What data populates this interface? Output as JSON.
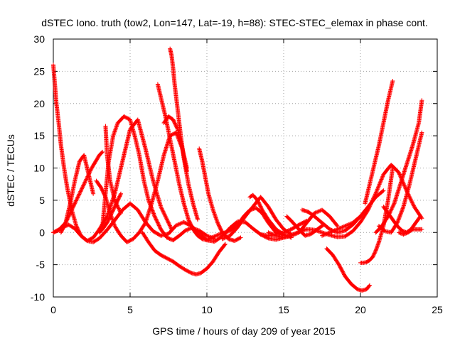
{
  "chart_data": {
    "type": "scatter",
    "title": "dSTEC Iono. truth (tow2, Lon=147, Lat=-19, h=88): STEC-STEC_elemax in phase cont.",
    "xlabel": "GPS time / hours of day 209 of year 2015",
    "ylabel": "dSTEC  / TECUs",
    "xlim": [
      0,
      25
    ],
    "ylim": [
      -10,
      30
    ],
    "xticks": [
      "0",
      "5",
      "10",
      "15",
      "20",
      "25"
    ],
    "yticks": [
      "-10",
      "-5",
      "0",
      "5",
      "10",
      "15",
      "20",
      "25",
      "30"
    ],
    "grid": true,
    "marker": "+",
    "color": "#ff0000",
    "series": [
      {
        "x": [
          0.0,
          0.3,
          0.6,
          1.0,
          1.4,
          1.8,
          2.2,
          2.6,
          3.0,
          3.5,
          4.0,
          4.5,
          5.0,
          5.5,
          6.0,
          6.5,
          7.0,
          7.5,
          8.0,
          8.5,
          9.0,
          9.5,
          10.0,
          10.5,
          11.0,
          11.5,
          12.0,
          12.5,
          13.0,
          13.5,
          14.0,
          14.5,
          15.0,
          15.5,
          16.0,
          16.5,
          17.0,
          17.5,
          18.0,
          18.5,
          19.0,
          19.5,
          20.0,
          20.5,
          21.0,
          21.5,
          22.0,
          22.5,
          23.0,
          23.5,
          24.0
        ],
        "y": [
          0.0,
          0.3,
          0.8,
          1.2,
          0.6,
          -0.5,
          -1.3,
          -1.5,
          -0.9,
          0.4,
          1.9,
          3.5,
          4.5,
          3.5,
          1.6,
          0.2,
          -0.5,
          -0.2,
          1.1,
          1.6,
          1.0,
          -0.1,
          -1.2,
          -1.4,
          -0.6,
          0.7,
          1.7,
          1.6,
          0.6,
          -0.3,
          -0.9,
          -1.1,
          -0.8,
          -0.4,
          0.1,
          0.5,
          0.4,
          0.0,
          -0.4,
          -0.7,
          -0.6,
          0.2,
          1.6,
          3.5,
          6.1,
          9.0,
          10.5,
          9.3,
          6.5,
          4.0,
          2.2
        ]
      },
      {
        "x": [
          0.0,
          0.1,
          0.2,
          0.35,
          0.5,
          0.7,
          0.9,
          1.2,
          1.5,
          1.8,
          2.2,
          2.6,
          3.0,
          3.5,
          4.0,
          4.5,
          5.0,
          5.5,
          6.0,
          6.5,
          7.0,
          7.5,
          7.7
        ],
        "y": [
          26.0,
          23.0,
          20.0,
          17.0,
          13.5,
          10.0,
          7.0,
          3.5,
          1.0,
          -0.5,
          -1.3,
          -0.8,
          0.5,
          2.5,
          6.0,
          11.0,
          16.0,
          17.5,
          13.0,
          8.0,
          4.0,
          1.5,
          0.5
        ]
      },
      {
        "x": [
          0.0,
          0.4,
          0.8,
          1.2,
          1.6,
          2.0,
          2.5,
          3.0,
          3.2
        ],
        "y": [
          0.0,
          0.5,
          1.5,
          3.5,
          5.5,
          7.5,
          10.0,
          12.0,
          12.5
        ]
      },
      {
        "x": [
          0.5,
          0.8,
          1.1,
          1.4,
          1.7,
          2.0,
          2.3,
          2.6
        ],
        "y": [
          0.0,
          1.5,
          4.5,
          8.0,
          11.0,
          12.0,
          9.0,
          6.0
        ]
      },
      {
        "x": [
          3.2,
          3.4,
          3.6,
          3.9,
          4.2,
          4.6,
          5.0,
          5.3,
          5.6,
          5.9,
          6.2,
          6.6,
          7.0,
          7.4,
          7.8,
          8.2,
          8.6,
          9.0,
          9.5,
          10.0,
          10.5
        ],
        "y": [
          1.0,
          6.0,
          11.0,
          15.0,
          17.0,
          18.0,
          17.5,
          15.0,
          12.0,
          8.0,
          5.0,
          2.5,
          0.5,
          -0.8,
          -1.2,
          -0.5,
          0.3,
          0.7,
          0.3,
          -0.5,
          -1.0
        ]
      },
      {
        "x": [
          3.4,
          3.5,
          3.7,
          4.0,
          4.4
        ],
        "y": [
          16.5,
          12.0,
          8.0,
          5.0,
          3.0
        ]
      },
      {
        "x": [
          2.8,
          3.1,
          3.4,
          3.7,
          4.0,
          4.4,
          4.8,
          5.2,
          5.6,
          6.0,
          6.4,
          6.8,
          7.2,
          7.6,
          8.0,
          8.4,
          8.7
        ],
        "y": [
          8.0,
          7.0,
          5.5,
          3.0,
          1.0,
          -0.5,
          -1.5,
          -1.0,
          0.0,
          1.5,
          4.5,
          8.0,
          12.0,
          15.0,
          15.5,
          13.0,
          10.0
        ]
      },
      {
        "x": [
          3.0,
          3.2,
          3.5,
          3.8,
          4.1,
          4.4
        ],
        "y": [
          0.0,
          0.5,
          1.5,
          3.0,
          4.5,
          6.0
        ]
      },
      {
        "x": [
          6.8,
          7.0,
          7.3,
          7.6,
          7.9,
          8.2,
          8.5,
          8.8,
          9.1,
          9.4,
          9.7,
          10.0,
          10.3,
          10.6,
          10.9,
          11.2,
          11.5,
          11.8,
          12.1,
          12.4,
          12.8,
          13.2,
          13.6,
          14.0,
          14.5,
          15.0
        ],
        "y": [
          23.0,
          21.0,
          18.0,
          14.5,
          11.0,
          7.5,
          4.5,
          2.0,
          0.5,
          -0.5,
          -1.0,
          -1.2,
          -0.8,
          -0.5,
          -0.2,
          0.0,
          0.3,
          0.8,
          1.5,
          2.5,
          3.5,
          3.8,
          3.0,
          1.5,
          0.0,
          -0.5
        ]
      },
      {
        "x": [
          7.6,
          7.7,
          7.8,
          7.9,
          8.1,
          8.3,
          8.5,
          8.8,
          9.1,
          9.4
        ],
        "y": [
          28.5,
          27.5,
          25.5,
          23.0,
          19.0,
          15.0,
          11.5,
          7.5,
          4.5,
          2.0
        ]
      },
      {
        "x": [
          7.2,
          7.5,
          7.8,
          8.1,
          8.4,
          8.7
        ],
        "y": [
          17.0,
          18.0,
          17.5,
          16.0,
          13.0,
          9.5
        ]
      },
      {
        "x": [
          5.8,
          6.2,
          6.6,
          7.0,
          7.4,
          7.8,
          8.2,
          8.6,
          9.0,
          9.3,
          9.6,
          10.0,
          10.4,
          10.8,
          11.2
        ],
        "y": [
          0.0,
          -1.5,
          -2.8,
          -3.5,
          -4.0,
          -4.5,
          -5.2,
          -5.8,
          -6.3,
          -6.5,
          -6.3,
          -5.6,
          -4.5,
          -3.0,
          -1.8
        ]
      },
      {
        "x": [
          9.5,
          9.7,
          9.9,
          10.1,
          10.4,
          10.7,
          11.0,
          11.4,
          11.8,
          12.2
        ],
        "y": [
          13.0,
          11.0,
          8.5,
          6.0,
          3.5,
          1.5,
          0.0,
          -1.0,
          -1.3,
          -0.8
        ]
      },
      {
        "x": [
          11.0,
          11.5,
          12.0,
          12.5,
          13.0,
          13.5,
          14.0,
          14.5,
          15.0,
          15.5
        ],
        "y": [
          -1.0,
          -0.5,
          0.8,
          2.5,
          4.0,
          5.5,
          4.0,
          2.0,
          0.5,
          -0.3
        ]
      },
      {
        "x": [
          12.8,
          13.0,
          13.3,
          13.6,
          14.0,
          14.5,
          15.0,
          15.5
        ],
        "y": [
          5.5,
          5.8,
          5.0,
          3.5,
          2.0,
          0.5,
          -0.3,
          -0.8
        ]
      },
      {
        "x": [
          14.0,
          14.5,
          15.0,
          15.5,
          16.0,
          16.5,
          17.0,
          17.5,
          18.0,
          18.5
        ],
        "y": [
          0.0,
          -0.5,
          -0.8,
          -0.5,
          0.0,
          1.5,
          3.0,
          3.5,
          2.5,
          1.0
        ]
      },
      {
        "x": [
          15.2,
          15.5,
          15.8,
          16.1,
          16.4,
          16.8,
          17.2,
          17.6
        ],
        "y": [
          2.5,
          1.8,
          1.0,
          0.2,
          -0.5,
          -0.2,
          0.5,
          1.2
        ]
      },
      {
        "x": [
          16.2,
          16.6,
          17.0,
          17.5,
          18.0,
          18.5,
          19.0,
          19.5,
          20.0
        ],
        "y": [
          3.5,
          3.2,
          2.5,
          1.5,
          0.5,
          0.0,
          0.3,
          1.2,
          2.5
        ]
      },
      {
        "x": [
          17.5,
          18.0,
          18.5,
          19.0,
          19.5,
          20.0,
          20.5,
          21.0,
          21.5
        ],
        "y": [
          -0.5,
          0.0,
          0.5,
          1.0,
          1.5,
          2.5,
          4.0,
          5.5,
          6.5
        ]
      },
      {
        "x": [
          17.8,
          18.2,
          18.6,
          19.0,
          19.4,
          19.8,
          20.1,
          20.4,
          20.6
        ],
        "y": [
          -2.5,
          -3.5,
          -5.0,
          -6.8,
          -8.0,
          -8.8,
          -9.0,
          -8.8,
          -8.2
        ]
      },
      {
        "x": [
          20.0,
          20.2,
          20.4,
          20.6,
          20.8,
          21.0,
          21.2,
          21.5,
          21.8,
          22.1
        ],
        "y": [
          -4.7,
          -4.7,
          -4.6,
          -4.3,
          -3.8,
          -2.8,
          -1.5,
          1.0,
          5.0,
          10.0
        ]
      },
      {
        "x": [
          20.3,
          20.6,
          20.9,
          21.2,
          21.5,
          21.8,
          22.1
        ],
        "y": [
          4.5,
          7.5,
          10.5,
          13.5,
          17.0,
          20.5,
          23.5
        ]
      },
      {
        "x": [
          21.0,
          21.4,
          21.8,
          22.2,
          22.6,
          23.0,
          23.4,
          23.8,
          24.0
        ],
        "y": [
          0.0,
          1.0,
          2.5,
          4.5,
          7.5,
          10.5,
          13.5,
          17.0,
          20.5
        ]
      },
      {
        "x": [
          21.2,
          21.6,
          22.0,
          22.4,
          22.8,
          23.2,
          23.6,
          24.0
        ],
        "y": [
          1.0,
          0.2,
          0.0,
          1.5,
          4.0,
          7.5,
          11.5,
          15.5
        ]
      },
      {
        "x": [
          21.5,
          21.8,
          22.1,
          22.4,
          22.7,
          23.0,
          23.3,
          23.6,
          23.9
        ],
        "y": [
          4.0,
          3.0,
          2.0,
          1.0,
          0.3,
          0.0,
          0.5,
          1.5,
          2.5
        ]
      },
      {
        "x": [
          22.5,
          22.8,
          23.1,
          23.4,
          23.7,
          24.0
        ],
        "y": [
          0.0,
          -0.3,
          0.0,
          0.5,
          0.5,
          0.5
        ]
      },
      {
        "x": [
          13.5,
          14.0,
          14.5,
          15.0,
          15.5,
          16.0,
          16.5
        ],
        "y": [
          -0.3,
          -0.5,
          -0.3,
          0.0,
          0.5,
          1.2,
          1.8
        ]
      }
    ]
  }
}
